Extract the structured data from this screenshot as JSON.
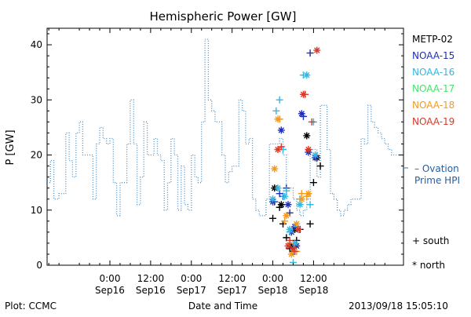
{
  "chart_data": {
    "type": "line",
    "title": "Hemispheric Power [GW]",
    "ylabel": "P [GW]",
    "xlabel": "Date and Time",
    "ylim": [
      0,
      43
    ],
    "yticks": [
      0,
      10,
      20,
      30,
      40
    ],
    "xlim_hours": [
      -18.5,
      86.5
    ],
    "xticks": [
      {
        "h": 0,
        "time": "0:00",
        "date": "Sep16"
      },
      {
        "h": 12,
        "time": "12:00",
        "date": "Sep16"
      },
      {
        "h": 24,
        "time": "0:00",
        "date": "Sep17"
      },
      {
        "h": 36,
        "time": "12:00",
        "date": "Sep17"
      },
      {
        "h": 48,
        "time": "0:00",
        "date": "Sep18"
      },
      {
        "h": 60,
        "time": "12:00",
        "date": "Sep18"
      }
    ],
    "ovation": {
      "name": "Ovation Prime HPI",
      "label_line1": "– Ovation",
      "label_line2": "Prime HPI",
      "color": "#4a8ec4",
      "x": [
        -18.5,
        -17.5,
        -16.5,
        -15,
        -13,
        -12,
        -11,
        -10,
        -9,
        -8,
        -7,
        -5,
        -4,
        -3,
        -2,
        -1,
        0,
        1,
        2,
        3,
        4,
        5,
        6,
        7,
        8,
        9,
        10,
        11,
        12,
        13,
        14,
        15,
        16,
        17,
        18,
        19,
        20,
        21,
        22,
        23,
        24,
        25,
        26,
        27,
        28,
        29,
        30,
        31,
        32,
        33,
        34,
        35,
        36,
        37,
        38,
        39,
        40,
        41,
        42,
        43,
        44,
        45,
        46,
        47,
        48,
        49,
        50,
        51,
        52,
        53,
        54,
        55,
        56,
        57,
        58,
        59,
        60,
        61,
        62,
        63,
        64,
        65,
        66,
        67,
        68,
        69,
        70,
        71,
        72,
        73,
        74,
        75,
        76,
        77,
        78,
        79,
        80,
        81,
        82,
        83,
        84,
        85,
        86
      ],
      "y": [
        15,
        19,
        12,
        13,
        24,
        19,
        16,
        24,
        26,
        20,
        20,
        12,
        22,
        25,
        23,
        22,
        23,
        15,
        9,
        15,
        15,
        22,
        30,
        22,
        11,
        16,
        26,
        20,
        20,
        23,
        20,
        19,
        10,
        15,
        23,
        20,
        10,
        18,
        11,
        10,
        20,
        16,
        15,
        26,
        41,
        30,
        28,
        26,
        26,
        20,
        15,
        17,
        18,
        18,
        30,
        28,
        22,
        23,
        12,
        10,
        9,
        9,
        12,
        22,
        22,
        22,
        23,
        20,
        14,
        14,
        12,
        10,
        9,
        10,
        12,
        21,
        21,
        16,
        29,
        29,
        21,
        13,
        12,
        10,
        9,
        10,
        11,
        12,
        12,
        12,
        23,
        22,
        29,
        26,
        25,
        24,
        23,
        22,
        21,
        20,
        20,
        20,
        20
      ]
    },
    "series": [
      {
        "name": "METP-02",
        "color": "#000000",
        "south": [
          [
            48,
            8.5
          ],
          [
            50,
            10.5
          ],
          [
            51,
            7.5
          ],
          [
            52,
            5.0
          ],
          [
            53,
            3.0
          ],
          [
            54,
            2.5
          ],
          [
            55,
            4.5
          ],
          [
            56,
            6.5
          ],
          [
            59,
            7.5
          ],
          [
            60,
            15.0
          ],
          [
            62,
            18.0
          ]
        ],
        "north": [
          [
            48.5,
            14.0
          ],
          [
            50.5,
            11.0
          ],
          [
            53.5,
            3.5
          ],
          [
            54.5,
            6.5
          ],
          [
            58,
            23.5
          ],
          [
            61,
            19.5
          ]
        ]
      },
      {
        "name": "NOAA-15",
        "color": "#1f2fb5",
        "south": [
          [
            48.5,
            11.5
          ],
          [
            50,
            13.0
          ],
          [
            51,
            12.5
          ],
          [
            52,
            14.0
          ],
          [
            53,
            9.5
          ],
          [
            57,
            27.0
          ],
          [
            59,
            38.5
          ]
        ],
        "north": [
          [
            48,
            11.5
          ],
          [
            50.5,
            24.5
          ],
          [
            52.5,
            11.0
          ],
          [
            53.5,
            6.0
          ],
          [
            54.5,
            7.0
          ],
          [
            55,
            3.5
          ],
          [
            56.5,
            27.5
          ],
          [
            58.5,
            20.5
          ],
          [
            60.5,
            19.5
          ]
        ]
      },
      {
        "name": "NOAA-16",
        "color": "#33b8e0",
        "south": [
          [
            49,
            28.0
          ],
          [
            50,
            30.0
          ],
          [
            51,
            21.0
          ],
          [
            52,
            13.5
          ],
          [
            53,
            6.0
          ],
          [
            54,
            0.5
          ],
          [
            55,
            7.0
          ],
          [
            56,
            12.0
          ],
          [
            57,
            34.5
          ],
          [
            59,
            11.0
          ],
          [
            60,
            26.0
          ]
        ],
        "north": [
          [
            48,
            12.0
          ],
          [
            49.5,
            14.0
          ],
          [
            51.5,
            12.5
          ],
          [
            53,
            6.5
          ],
          [
            54.5,
            4.0
          ],
          [
            56,
            11.0
          ],
          [
            58,
            34.5
          ],
          [
            60.5,
            20.0
          ]
        ]
      },
      {
        "name": "NOAA-17",
        "color": "#44e36b",
        "south": [],
        "north": []
      },
      {
        "name": "NOAA-18",
        "color": "#f39a1f",
        "south": [
          [
            50,
            26.5
          ],
          [
            51.5,
            8.0
          ],
          [
            53,
            4.0
          ],
          [
            55,
            2.5
          ],
          [
            56.5,
            13.0
          ],
          [
            58,
            12.5
          ]
        ],
        "north": [
          [
            48.5,
            17.5
          ],
          [
            49.5,
            26.5
          ],
          [
            52,
            9.0
          ],
          [
            53.5,
            2.0
          ],
          [
            55,
            7.5
          ],
          [
            56.5,
            12.0
          ],
          [
            58.5,
            13.0
          ]
        ]
      },
      {
        "name": "NOAA-19",
        "color": "#d83a2a",
        "south": [
          [
            50.5,
            21.5
          ],
          [
            53,
            4.5
          ],
          [
            54.5,
            2.5
          ],
          [
            57.5,
            31.0
          ],
          [
            59.5,
            26.0
          ]
        ],
        "north": [
          [
            49.5,
            21.0
          ],
          [
            52.5,
            3.5
          ],
          [
            54,
            3.0
          ],
          [
            55.5,
            6.5
          ],
          [
            57,
            31.0
          ],
          [
            58.5,
            21.0
          ],
          [
            61,
            39.0
          ]
        ]
      }
    ],
    "symbol_key": {
      "south": "+ south",
      "north": "* north"
    }
  },
  "footer": {
    "source": "Plot: CCMC",
    "timestamp": "2013/09/18 15:05:10"
  }
}
